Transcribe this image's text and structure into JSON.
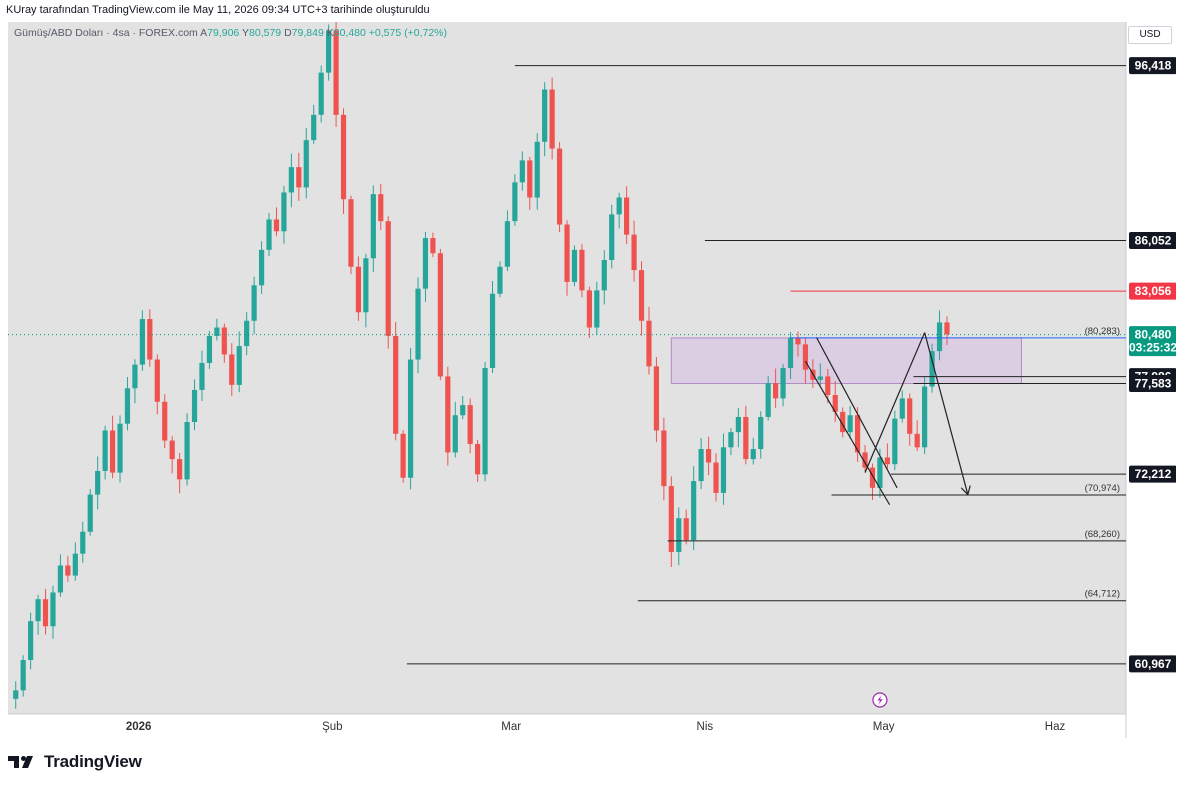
{
  "header": {
    "attribution": "KUray tarafından TradingView.com ile May 11, 2026 09:34 UTC+3 tarihinde oluşturuldu"
  },
  "symbol": {
    "name": "Gümüş/ABD Doları · 4sa · FOREX.com",
    "open_label": "A",
    "open": "79,906",
    "high_label": "Y",
    "high": "80,579",
    "low_label": "D",
    "low": "79,849",
    "close_label": "K",
    "close": "80,480",
    "change": "+0,575 (+0,72%)"
  },
  "currency": "USD",
  "footer": {
    "brand": "TradingView"
  },
  "colors": {
    "up": "#26a69a",
    "down": "#ef5350",
    "current": "#089981",
    "red_tag": "#f23645",
    "zone": "#d8c5e2",
    "zone_border": "#b08cc4",
    "blue": "#2962ff"
  },
  "icons": {
    "flash": "lightning-icon",
    "logo": "tradingview-logo-icon"
  },
  "chart_data": {
    "type": "candlestick",
    "ylim": [
      58000,
      99000
    ],
    "y_ticks": [
      "58,800",
      "60,400",
      "62,000",
      "64,000",
      "66,000",
      "68,000",
      "70,000",
      "72,000",
      "74,000",
      "76,000",
      "84,000",
      "88,000",
      "92,000"
    ],
    "x_ticks": [
      {
        "label": "2026",
        "bar": 17
      },
      {
        "label": "Şub",
        "bar": 43
      },
      {
        "label": "Mar",
        "bar": 67
      },
      {
        "label": "Nis",
        "bar": 93
      },
      {
        "label": "May",
        "bar": 117
      },
      {
        "label": "Haz",
        "bar": 140
      }
    ],
    "price_tags": [
      {
        "label": "96,418",
        "value": 96418,
        "style": "dark"
      },
      {
        "label": "86,052",
        "value": 86052,
        "style": "dark"
      },
      {
        "label": "83,056",
        "value": 83056,
        "style": "red"
      },
      {
        "label": "80,480",
        "value": 80480,
        "style": "current",
        "sub": "03:25:32"
      },
      {
        "label": "77,986",
        "value": 77986,
        "style": "dark"
      },
      {
        "label": "77,583",
        "value": 77583,
        "style": "dark"
      },
      {
        "label": "72,212",
        "value": 72212,
        "style": "dark"
      },
      {
        "label": "60,967",
        "value": 60967,
        "style": "dark"
      }
    ],
    "levels": [
      {
        "value": 96418,
        "from_bar": 67.5,
        "to_bar": 159,
        "color": "#222"
      },
      {
        "value": 86052,
        "from_bar": 93,
        "to_bar": 159,
        "color": "#222"
      },
      {
        "value": 83056,
        "from_bar": 104.5,
        "to_bar": 159,
        "color": "#f23645"
      },
      {
        "value": 80283,
        "from_bar": 104.5,
        "to_bar": 159,
        "color": "#2962ff",
        "label": "(80,283)"
      },
      {
        "value": 77986,
        "from_bar": 121,
        "to_bar": 159,
        "color": "#222"
      },
      {
        "value": 77583,
        "from_bar": 121,
        "to_bar": 159,
        "color": "#222"
      },
      {
        "value": 72212,
        "from_bar": 118,
        "to_bar": 159,
        "color": "#222"
      },
      {
        "value": 70974,
        "from_bar": 110,
        "to_bar": 159,
        "color": "#222",
        "label": "(70,974)"
      },
      {
        "value": 68260,
        "from_bar": 88,
        "to_bar": 159,
        "color": "#222",
        "label": "(68,260)"
      },
      {
        "value": 64712,
        "from_bar": 84,
        "to_bar": 159,
        "color": "#222",
        "label": "(64,712)"
      },
      {
        "value": 60967,
        "from_bar": 53,
        "to_bar": 159,
        "color": "#222"
      }
    ],
    "zone": {
      "from_bar": 88.5,
      "to_bar": 135.5,
      "top": 80283,
      "bottom": 77583
    },
    "trendlines": [
      {
        "from": [
          106.5,
          78900
        ],
        "to": [
          117.8,
          70400
        ]
      },
      {
        "from": [
          108.0,
          80300
        ],
        "to": [
          118.8,
          71400
        ]
      },
      {
        "from": [
          114.5,
          72300
        ],
        "to": [
          122.5,
          80600
        ]
      },
      {
        "from": [
          122.5,
          80600
        ],
        "to": [
          128.3,
          71000
        ],
        "arrow": true
      }
    ],
    "closes": [
      59400,
      61200,
      63500,
      64800,
      63200,
      65200,
      66800,
      66200,
      67500,
      68800,
      71000,
      72400,
      74800,
      72300,
      75200,
      77300,
      78700,
      81400,
      79000,
      76500,
      74200,
      73100,
      71900,
      75300,
      77200,
      78800,
      80400,
      80900,
      79300,
      77500,
      79800,
      81300,
      83400,
      85500,
      87300,
      86600,
      88900,
      90400,
      89200,
      92000,
      93500,
      96000,
      98500,
      93500,
      88500,
      84500,
      81800,
      85000,
      88800,
      87200,
      80400,
      74600,
      72000,
      79000,
      83200,
      86200,
      85300,
      78000,
      73500,
      75700,
      76300,
      74000,
      72200,
      78500,
      82900,
      84500,
      87200,
      89500,
      90800,
      88600,
      91900,
      95000,
      91500,
      87000,
      83600,
      85500,
      83100,
      80900,
      83100,
      84900,
      87600,
      88600,
      86400,
      84300,
      81300,
      78600,
      74800,
      71500,
      67600,
      69600,
      68300,
      71800,
      73700,
      72900,
      71100,
      73800,
      74700,
      75600,
      73100,
      73700,
      75600,
      77600,
      76700,
      78500,
      80300,
      79900,
      78400,
      77800,
      78000,
      76900,
      75900,
      74700,
      75700,
      73500,
      72600,
      71400,
      73200,
      72800,
      75500,
      76700,
      74600,
      73800,
      77400,
      79500,
      81200,
      80500
    ]
  }
}
